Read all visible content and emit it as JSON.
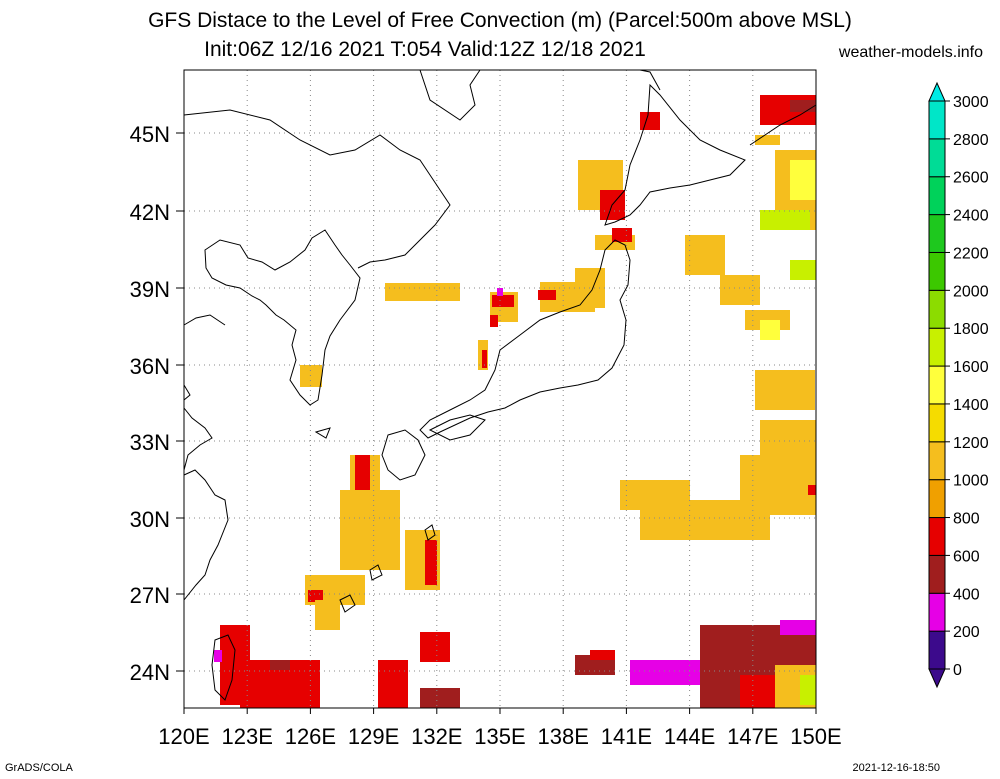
{
  "title": {
    "line1": "GFS Distace to the Level of Free Convection (m) (Parcel:500m above MSL)",
    "line2": "Init:06Z 12/16 2021 T:054 Valid:12Z 12/18 2021"
  },
  "site": "weather-models.info",
  "footer": {
    "left": "GrADS/COLA",
    "right": "2021-12-16-18:50"
  },
  "lat_labels": [
    "45N",
    "42N",
    "39N",
    "36N",
    "33N",
    "30N",
    "27N",
    "24N"
  ],
  "lon_labels": [
    "120E",
    "123E",
    "126E",
    "129E",
    "132E",
    "135E",
    "138E",
    "141E",
    "144E",
    "147E",
    "150E"
  ],
  "colorbar": {
    "labels": [
      "0",
      "200",
      "400",
      "600",
      "800",
      "1000",
      "1200",
      "1400",
      "1600",
      "1800",
      "2000",
      "2200",
      "2400",
      "2600",
      "2800",
      "3000"
    ],
    "colors": [
      "#3c0a8c",
      "#e600e6",
      "#a01e1e",
      "#e60000",
      "#f0a000",
      "#f5be1e",
      "#f5dc00",
      "#ffff3c",
      "#c8f000",
      "#8cdc00",
      "#3cc800",
      "#1ec81e",
      "#00d25a",
      "#00dc96",
      "#00e6c8",
      "#00ebe6"
    ]
  }
}
